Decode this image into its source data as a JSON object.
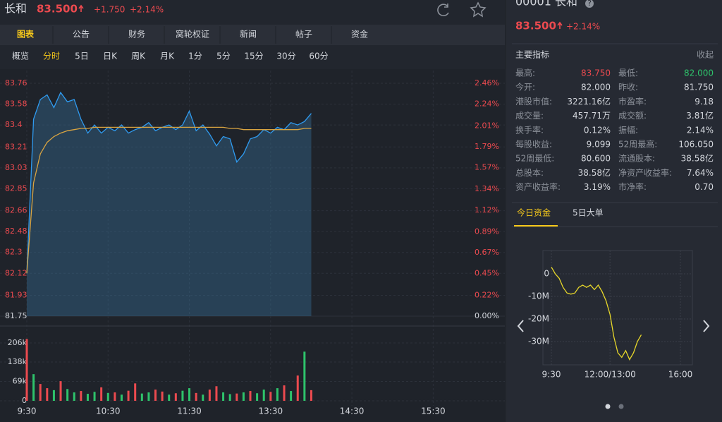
{
  "header": {
    "name": "长和",
    "price": "83.500",
    "change": "+1.750",
    "change_pct": "+2.14%"
  },
  "tabs": [
    "图表",
    "公告",
    "财务",
    "窝轮权证",
    "新闻",
    "帖子",
    "资金"
  ],
  "active_tab": 0,
  "periods": [
    "概览",
    "分时",
    "5日",
    "日K",
    "周K",
    "月K",
    "1分",
    "5分",
    "15分",
    "30分",
    "60分"
  ],
  "active_period": 1,
  "side": {
    "code_name": "00001 长和",
    "help": "?",
    "price": "83.500",
    "change_pct": "+2.14%",
    "metrics_title": "主要指标",
    "collapse": "收起",
    "metrics": [
      [
        "最高:",
        "83.750",
        "最低:",
        "82.000"
      ],
      [
        "今开:",
        "82.000",
        "昨收:",
        "81.750"
      ],
      [
        "港股市值:",
        "3221.16亿",
        "市盈率:",
        "9.18"
      ],
      [
        "成交量:",
        "457.71万",
        "成交额:",
        "3.81亿"
      ],
      [
        "换手率:",
        "0.12%",
        "振幅:",
        "2.14%"
      ],
      [
        "每股收益:",
        "9.099",
        "52周最高:",
        "106.050"
      ],
      [
        "52周最低:",
        "80.600",
        "流通股本:",
        "38.58亿"
      ],
      [
        "总股本:",
        "38.58亿",
        "净资产收益率:",
        "7.64%"
      ],
      [
        "资产收益率:",
        "3.19%",
        "市净率:",
        "0.70"
      ]
    ],
    "fund_tabs": [
      "今日资金",
      "5日大单"
    ],
    "active_fund_tab": 0
  },
  "chart_data": [
    {
      "type": "line",
      "up_color": "#ec4a4f",
      "categories": [
        "9:30",
        null,
        null,
        null,
        null,
        null,
        null,
        null,
        null,
        null,
        null,
        null,
        "10:30",
        null,
        null,
        null,
        null,
        null,
        null,
        null,
        null,
        null,
        null,
        null,
        "11:30",
        null,
        null,
        null,
        null,
        null,
        null,
        null,
        null,
        null,
        null,
        null,
        "13:30",
        null,
        null,
        null,
        null,
        null,
        null,
        null,
        null,
        null,
        null,
        null,
        "14:30",
        null,
        null,
        null,
        null,
        null,
        null,
        null,
        null,
        null,
        null,
        null,
        "15:30",
        null,
        null,
        null,
        null,
        null,
        null
      ],
      "series": [
        {
          "color": "#2f9bf0",
          "fill": "#3a7aa8",
          "values": [
            82.12,
            83.45,
            83.62,
            83.66,
            83.55,
            83.68,
            83.6,
            83.62,
            83.45,
            83.33,
            83.4,
            83.33,
            83.38,
            83.35,
            83.4,
            83.33,
            83.36,
            83.38,
            83.42,
            83.35,
            83.38,
            83.4,
            83.36,
            83.4,
            83.52,
            83.35,
            83.4,
            83.32,
            83.22,
            83.3,
            83.28,
            83.08,
            83.15,
            83.28,
            83.3,
            83.36,
            83.33,
            83.38,
            83.36,
            83.42,
            83.4,
            83.43,
            83.5,
            null,
            null,
            null,
            null,
            null,
            null,
            null,
            null,
            null,
            null,
            null,
            null,
            null,
            null,
            null,
            null,
            null,
            null,
            null,
            null,
            null,
            null,
            null,
            null
          ]
        },
        {
          "color": "#d9a441",
          "values": [
            82.12,
            82.9,
            83.15,
            83.25,
            83.3,
            83.33,
            83.35,
            83.36,
            83.37,
            83.37,
            83.38,
            83.38,
            83.38,
            83.38,
            83.38,
            83.38,
            83.38,
            83.38,
            83.38,
            83.38,
            83.38,
            83.38,
            83.38,
            83.38,
            83.38,
            83.38,
            83.38,
            83.38,
            83.38,
            83.38,
            83.37,
            83.37,
            83.36,
            83.36,
            83.36,
            83.36,
            83.36,
            83.36,
            83.36,
            83.36,
            83.36,
            83.37,
            83.37,
            null,
            null,
            null,
            null,
            null,
            null,
            null,
            null,
            null,
            null,
            null,
            null,
            null,
            null,
            null,
            null,
            null,
            null,
            null,
            null,
            null,
            null,
            null,
            null
          ]
        }
      ],
      "ylim": [
        81.75,
        83.76
      ],
      "yticks": [
        83.76,
        83.58,
        83.4,
        83.21,
        83.03,
        82.85,
        82.66,
        82.48,
        82.3,
        82.12,
        81.93,
        81.75
      ],
      "y2lim": [
        0,
        2.46
      ],
      "y2ticks": [
        {
          "value": 2.46,
          "label": "2.46%"
        },
        {
          "value": 2.24,
          "label": "2.24%"
        },
        {
          "value": 2.01,
          "label": "2.01%"
        },
        {
          "value": 1.79,
          "label": "1.79%"
        },
        {
          "value": 1.57,
          "label": "1.57%"
        },
        {
          "value": 1.34,
          "label": "1.34%"
        },
        {
          "value": 1.12,
          "label": "1.12%"
        },
        {
          "value": 0.89,
          "label": "0.89%"
        },
        {
          "value": 0.67,
          "label": "0.67%"
        },
        {
          "value": 0.45,
          "label": "0.45%"
        },
        {
          "value": 0.22,
          "label": "0.22%"
        },
        {
          "value": 0,
          "label": "0.00%"
        }
      ]
    },
    {
      "type": "bar",
      "values": [
        220000,
        95000,
        60000,
        45000,
        38000,
        70000,
        42000,
        30000,
        35000,
        25000,
        32000,
        48000,
        28000,
        30000,
        22000,
        36000,
        62000,
        26000,
        30000,
        40000,
        33000,
        22000,
        27000,
        36000,
        45000,
        28000,
        22000,
        40000,
        52000,
        30000,
        24000,
        26000,
        30000,
        35000,
        27000,
        40000,
        32000,
        45000,
        55000,
        35000,
        90000,
        175000,
        38000
      ],
      "bar_colors": [
        "#ec4a4f",
        "#2ec36b",
        "#ec4a4f",
        "#ec4a4f",
        "#2ec36b",
        "#ec4a4f",
        "#2ec36b",
        "#2ec36b",
        "#ec4a4f",
        "#2ec36b",
        "#2ec36b",
        "#ec4a4f",
        "#2ec36b",
        "#ec4a4f",
        "#2ec36b",
        "#ec4a4f",
        "#ec4a4f",
        "#2ec36b",
        "#2ec36b",
        "#ec4a4f",
        "#ec4a4f",
        "#2ec36b",
        "#ec4a4f",
        "#2ec36b",
        "#2ec36b",
        "#ec4a4f",
        "#2ec36b",
        "#ec4a4f",
        "#ec4a4f",
        "#2ec36b",
        "#2ec36b",
        "#ec4a4f",
        "#2ec36b",
        "#ec4a4f",
        "#2ec36b",
        "#2ec36b",
        "#ec4a4f",
        "#2ec36b",
        "#ec4a4f",
        "#2ec36b",
        "#ec4a4f",
        "#2ec36b",
        "#ec4a4f"
      ],
      "ylim": [
        0,
        226000
      ],
      "yticks": [
        0,
        {
          "value": 69000,
          "label": "69k"
        },
        {
          "value": 138000,
          "label": "138k"
        },
        {
          "value": 206000,
          "label": "206k"
        }
      ]
    },
    {
      "type": "line",
      "categories": [
        "9:30",
        null,
        null,
        null,
        null,
        null,
        null,
        null,
        null,
        null,
        null,
        null,
        null,
        null,
        null,
        "12:00/13:00",
        null,
        null,
        null,
        null,
        null,
        null,
        null,
        null,
        null,
        null,
        null,
        null,
        null,
        null,
        null,
        null,
        null,
        "16:00"
      ],
      "series": [
        {
          "color": "#e8d82a",
          "values": [
            3000000,
            0,
            -2000000,
            -6000000,
            -8500000,
            -9000000,
            -8500000,
            -6000000,
            -5000000,
            -6000000,
            -5000000,
            -7000000,
            -5000000,
            -8000000,
            -12000000,
            -18000000,
            -28000000,
            -35000000,
            -37000000,
            -34000000,
            -38000000,
            -35000000,
            -30000000,
            -27000000,
            null,
            null,
            null,
            null,
            null,
            null,
            null,
            null,
            null,
            null
          ]
        }
      ],
      "ylim": [
        -40300000,
        10300000
      ],
      "yticks": [
        0,
        {
          "value": -10000000,
          "label": "-10M"
        },
        {
          "value": -20000000,
          "label": "-20M"
        },
        {
          "value": -30000000,
          "label": "-30M"
        }
      ]
    }
  ]
}
